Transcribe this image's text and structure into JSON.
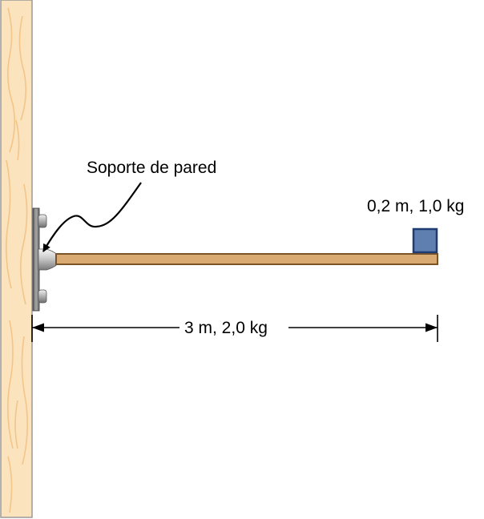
{
  "labels": {
    "bracket": "Soporte de pared",
    "block": "0,2 m, 1,0 kg",
    "beam_dimension": "3 m, 2,0 kg"
  },
  "colors": {
    "wall_fill": "#fbe3bd",
    "wall_grain": "#f2c58a",
    "wall_border": "#9a9a9a",
    "beam_fill": "#d9aa72",
    "beam_border": "#7a5426",
    "block_fill": "#5f7fb0",
    "block_border": "#1f3d73",
    "bracket_metal": "#8c8c8c",
    "line": "#000000"
  }
}
